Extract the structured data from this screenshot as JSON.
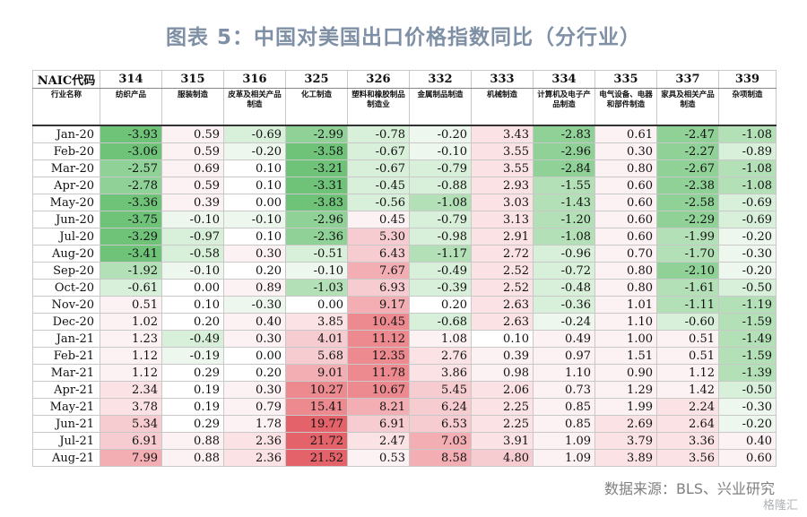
{
  "title": "图表 5：中国对美国出口价格指数同比（分行业）",
  "table": {
    "header_code_label": "NAIC代码",
    "header_name_label": "行业名称",
    "codes": [
      "314",
      "315",
      "316",
      "325",
      "326",
      "332",
      "333",
      "334",
      "335",
      "337",
      "339"
    ],
    "industries": [
      "纺织产品",
      "服装制造",
      "皮革及相关产品制造",
      "化工制造",
      "塑料和橡胶制品制造业",
      "金属制品制造",
      "机械制造",
      "计算机及电子产品制造",
      "电气设备、电器和部件制造",
      "家具及相关产品制造",
      "杂项制造"
    ],
    "rows": [
      {
        "month": "Jan-20",
        "values": [
          "-3.93",
          "0.59",
          "-0.69",
          "-2.99",
          "-0.78",
          "-0.20",
          "3.43",
          "-2.83",
          "0.61",
          "-2.47",
          "-1.08"
        ]
      },
      {
        "month": "Feb-20",
        "values": [
          "-3.06",
          "0.59",
          "-0.20",
          "-3.58",
          "-0.67",
          "-0.10",
          "3.55",
          "-2.96",
          "0.30",
          "-2.27",
          "-0.89"
        ]
      },
      {
        "month": "Mar-20",
        "values": [
          "-2.57",
          "0.69",
          "0.10",
          "-3.21",
          "-0.67",
          "-0.79",
          "3.55",
          "-2.84",
          "0.80",
          "-2.67",
          "-1.08"
        ]
      },
      {
        "month": "Apr-20",
        "values": [
          "-2.78",
          "0.59",
          "0.10",
          "-3.31",
          "-0.45",
          "-0.88",
          "2.93",
          "-1.55",
          "0.60",
          "-2.38",
          "-1.08"
        ]
      },
      {
        "month": "May-20",
        "values": [
          "-3.36",
          "0.39",
          "0.00",
          "-3.83",
          "-0.56",
          "-1.08",
          "3.03",
          "-1.43",
          "0.60",
          "-2.58",
          "-0.69"
        ]
      },
      {
        "month": "Jun-20",
        "values": [
          "-3.75",
          "-0.10",
          "-0.10",
          "-2.96",
          "0.45",
          "-0.79",
          "3.13",
          "-1.20",
          "0.60",
          "-2.29",
          "-0.69"
        ]
      },
      {
        "month": "Jul-20",
        "values": [
          "-3.29",
          "-0.97",
          "0.10",
          "-2.36",
          "5.30",
          "-0.98",
          "2.91",
          "-1.08",
          "0.60",
          "-1.99",
          "-0.20"
        ]
      },
      {
        "month": "Aug-20",
        "values": [
          "-3.41",
          "-0.58",
          "0.30",
          "-0.51",
          "6.43",
          "-1.17",
          "2.72",
          "-0.96",
          "0.70",
          "-1.70",
          "-0.30"
        ]
      },
      {
        "month": "Sep-20",
        "values": [
          "-1.92",
          "-0.10",
          "0.20",
          "-0.10",
          "7.67",
          "-0.49",
          "2.52",
          "-0.72",
          "0.80",
          "-2.10",
          "-0.20"
        ]
      },
      {
        "month": "Oct-20",
        "values": [
          "-0.61",
          "0.00",
          "0.89",
          "-1.03",
          "6.93",
          "-0.39",
          "2.52",
          "-0.48",
          "0.80",
          "-1.61",
          "-0.50"
        ]
      },
      {
        "month": "Nov-20",
        "values": [
          "0.51",
          "0.10",
          "-0.30",
          "0.00",
          "9.17",
          "0.20",
          "2.63",
          "-0.36",
          "1.01",
          "-1.11",
          "-1.19"
        ]
      },
      {
        "month": "Dec-20",
        "values": [
          "1.02",
          "0.20",
          "0.40",
          "3.85",
          "10.45",
          "-0.68",
          "2.63",
          "-0.24",
          "1.10",
          "-0.60",
          "-1.59"
        ]
      },
      {
        "month": "Jan-21",
        "values": [
          "1.23",
          "-0.49",
          "0.30",
          "4.01",
          "11.12",
          "1.08",
          "0.10",
          "0.49",
          "1.00",
          "0.51",
          "-1.49"
        ]
      },
      {
        "month": "Feb-21",
        "values": [
          "1.12",
          "-0.19",
          "0.00",
          "5.68",
          "12.35",
          "2.76",
          "0.39",
          "0.97",
          "1.51",
          "0.51",
          "-1.59"
        ]
      },
      {
        "month": "Mar-21",
        "values": [
          "1.12",
          "0.29",
          "0.20",
          "9.01",
          "11.78",
          "3.86",
          "0.98",
          "1.10",
          "0.90",
          "1.12",
          "-1.39"
        ]
      },
      {
        "month": "Apr-21",
        "values": [
          "2.34",
          "0.19",
          "0.30",
          "10.27",
          "10.67",
          "5.45",
          "2.06",
          "0.73",
          "1.29",
          "1.42",
          "-0.50"
        ]
      },
      {
        "month": "May-21",
        "values": [
          "3.78",
          "0.19",
          "0.79",
          "15.41",
          "8.21",
          "6.24",
          "2.25",
          "0.85",
          "1.99",
          "2.24",
          "-0.30"
        ]
      },
      {
        "month": "Jun-21",
        "values": [
          "5.34",
          "0.29",
          "1.78",
          "19.77",
          "6.91",
          "6.53",
          "2.25",
          "0.85",
          "2.69",
          "2.64",
          "-0.20"
        ]
      },
      {
        "month": "Jul-21",
        "values": [
          "6.91",
          "0.88",
          "2.36",
          "21.72",
          "2.47",
          "7.03",
          "3.91",
          "1.09",
          "3.79",
          "3.36",
          "0.40"
        ]
      },
      {
        "month": "Aug-21",
        "values": [
          "7.99",
          "0.88",
          "2.36",
          "21.52",
          "0.53",
          "8.58",
          "4.80",
          "1.09",
          "3.89",
          "3.56",
          "0.60"
        ]
      }
    ]
  },
  "source": "数据来源：BLS、兴业研究",
  "watermark": "格隆汇"
}
